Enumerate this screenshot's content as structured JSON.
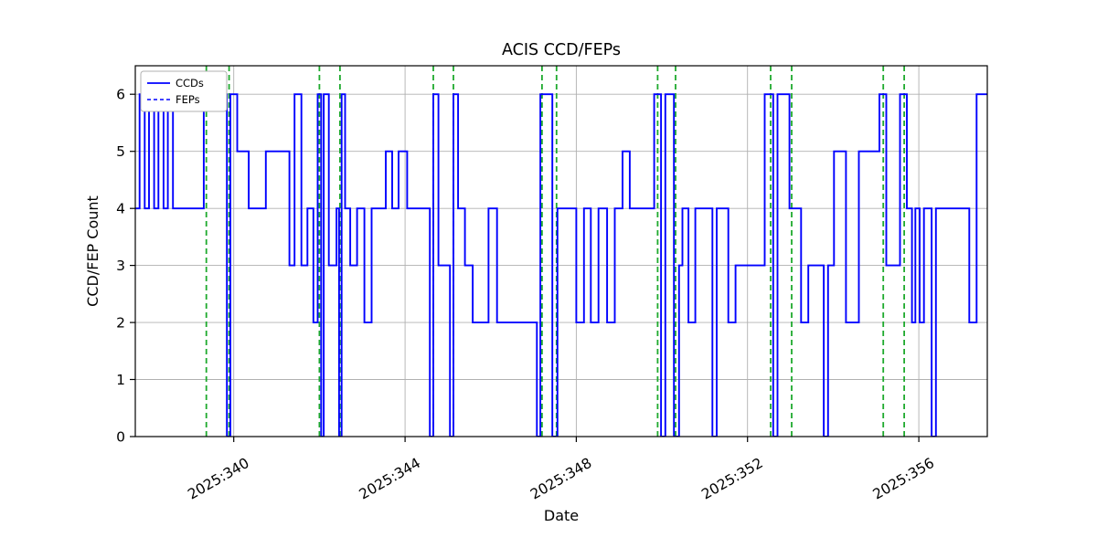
{
  "chart_data": {
    "type": "line",
    "title": "ACIS CCD/FEPs",
    "xlabel": "Date",
    "ylabel": "CCD/FEP Count",
    "xlim": [
      337.7,
      357.6
    ],
    "ylim": [
      0,
      6.5
    ],
    "grid": true,
    "legend": {
      "position": "upper-left",
      "entries": [
        {
          "label": "CCDs",
          "line": "solid"
        },
        {
          "label": "FEPs",
          "line": "dashed"
        }
      ]
    },
    "colors": {
      "series": "#0000ff",
      "event_lines": "#1faa2e",
      "grid": "#b0b0b0",
      "axes": "#000000",
      "background": "#ffffff"
    },
    "x_ticks": [
      {
        "value": 340,
        "label": "2025:340"
      },
      {
        "value": 344,
        "label": "2025:344"
      },
      {
        "value": 348,
        "label": "2025:348"
      },
      {
        "value": 352,
        "label": "2025:352"
      },
      {
        "value": 356,
        "label": "2025:356"
      }
    ],
    "y_ticks": [
      {
        "value": 0,
        "label": "0"
      },
      {
        "value": 1,
        "label": "1"
      },
      {
        "value": 2,
        "label": "2"
      },
      {
        "value": 3,
        "label": "3"
      },
      {
        "value": 4,
        "label": "4"
      },
      {
        "value": 5,
        "label": "5"
      },
      {
        "value": 6,
        "label": "6"
      }
    ],
    "series": [
      {
        "name": "CCDs",
        "style": "solid",
        "step": "post",
        "points": [
          [
            337.7,
            4
          ],
          [
            337.8,
            6
          ],
          [
            337.92,
            4
          ],
          [
            338.02,
            6
          ],
          [
            338.14,
            4
          ],
          [
            338.24,
            6
          ],
          [
            338.36,
            4
          ],
          [
            338.46,
            6
          ],
          [
            338.58,
            4
          ],
          [
            339.3,
            6
          ],
          [
            339.84,
            0
          ],
          [
            339.92,
            6
          ],
          [
            340.08,
            5
          ],
          [
            340.35,
            4
          ],
          [
            340.75,
            5
          ],
          [
            341.3,
            3
          ],
          [
            341.42,
            6
          ],
          [
            341.58,
            3
          ],
          [
            341.72,
            4
          ],
          [
            341.86,
            2
          ],
          [
            341.96,
            6
          ],
          [
            342.04,
            0
          ],
          [
            342.1,
            6
          ],
          [
            342.22,
            3
          ],
          [
            342.4,
            4
          ],
          [
            342.46,
            0
          ],
          [
            342.52,
            6
          ],
          [
            342.6,
            4
          ],
          [
            342.72,
            3
          ],
          [
            342.88,
            4
          ],
          [
            343.05,
            2
          ],
          [
            343.22,
            4
          ],
          [
            343.55,
            5
          ],
          [
            343.7,
            4
          ],
          [
            343.85,
            5
          ],
          [
            344.05,
            4
          ],
          [
            344.58,
            0
          ],
          [
            344.66,
            6
          ],
          [
            344.78,
            3
          ],
          [
            345.05,
            0
          ],
          [
            345.13,
            6
          ],
          [
            345.24,
            4
          ],
          [
            345.4,
            3
          ],
          [
            345.58,
            2
          ],
          [
            345.95,
            4
          ],
          [
            346.15,
            2
          ],
          [
            347.08,
            0
          ],
          [
            347.16,
            6
          ],
          [
            347.44,
            0
          ],
          [
            347.56,
            4
          ],
          [
            348.0,
            2
          ],
          [
            348.18,
            4
          ],
          [
            348.34,
            2
          ],
          [
            348.52,
            4
          ],
          [
            348.72,
            2
          ],
          [
            348.9,
            4
          ],
          [
            349.08,
            5
          ],
          [
            349.25,
            4
          ],
          [
            349.82,
            6
          ],
          [
            349.98,
            0
          ],
          [
            350.08,
            6
          ],
          [
            350.28,
            0
          ],
          [
            350.4,
            3
          ],
          [
            350.48,
            4
          ],
          [
            350.62,
            2
          ],
          [
            350.78,
            4
          ],
          [
            351.18,
            0
          ],
          [
            351.28,
            4
          ],
          [
            351.55,
            2
          ],
          [
            351.72,
            3
          ],
          [
            352.4,
            6
          ],
          [
            352.6,
            0
          ],
          [
            352.7,
            6
          ],
          [
            352.98,
            4
          ],
          [
            353.25,
            2
          ],
          [
            353.42,
            3
          ],
          [
            353.78,
            0
          ],
          [
            353.88,
            3
          ],
          [
            354.02,
            5
          ],
          [
            354.3,
            2
          ],
          [
            354.6,
            5
          ],
          [
            355.08,
            6
          ],
          [
            355.24,
            3
          ],
          [
            355.56,
            6
          ],
          [
            355.72,
            4
          ],
          [
            355.84,
            2
          ],
          [
            355.92,
            4
          ],
          [
            356.02,
            2
          ],
          [
            356.12,
            4
          ],
          [
            356.3,
            0
          ],
          [
            356.4,
            4
          ],
          [
            357.18,
            2
          ],
          [
            357.35,
            6
          ]
        ]
      }
    ],
    "event_lines": [
      339.36,
      339.89,
      342.0,
      342.48,
      344.66,
      345.13,
      347.2,
      347.54,
      349.9,
      350.32,
      352.54,
      353.03,
      355.17,
      355.66
    ]
  }
}
